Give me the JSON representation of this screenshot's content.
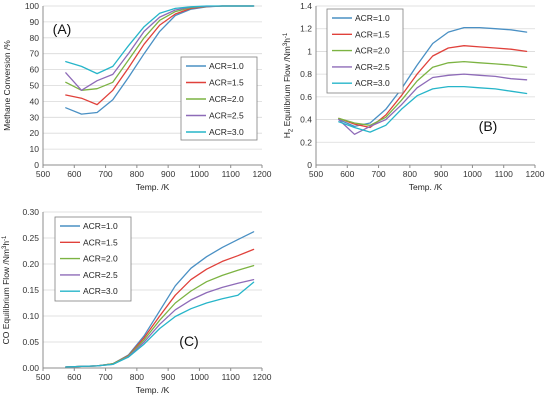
{
  "chart_data": [
    {
      "type": "line",
      "panel_label": "(A)",
      "xlabel": "Temp. /K",
      "ylabel": "Methane Conversion  /%",
      "xlim": [
        500,
        1200
      ],
      "ylim": [
        0,
        100
      ],
      "xticks": [
        500,
        600,
        700,
        800,
        900,
        1000,
        1100,
        1200
      ],
      "yticks": [
        0,
        10,
        20,
        30,
        40,
        50,
        60,
        70,
        80,
        90,
        100
      ],
      "xtick_labels": [
        "500",
        "600",
        "700",
        "800",
        "900",
        "1000",
        "1100",
        "1200"
      ],
      "ytick_labels": [
        "0",
        "10",
        "20",
        "30",
        "40",
        "50",
        "60",
        "70",
        "80",
        "90",
        "100"
      ],
      "legend_position": "right-middle",
      "x": [
        573,
        623,
        673,
        723,
        773,
        823,
        873,
        923,
        973,
        1023,
        1073,
        1123,
        1173
      ],
      "series": [
        {
          "name": "ACR=1.0",
          "color": "#4a90c4",
          "values": [
            36,
            32,
            33,
            41,
            55,
            70,
            84,
            94,
            98,
            99.5,
            100,
            100,
            100
          ]
        },
        {
          "name": "ACR=1.5",
          "color": "#e0413b",
          "values": [
            44,
            42,
            38,
            47,
            61,
            76,
            88,
            95,
            98.5,
            99.6,
            100,
            100,
            100
          ]
        },
        {
          "name": "ACR=2.0",
          "color": "#7cb342",
          "values": [
            52,
            47,
            48,
            52,
            66,
            80,
            91,
            96.5,
            99,
            99.7,
            100,
            100,
            100
          ]
        },
        {
          "name": "ACR=2.5",
          "color": "#8e6bb8",
          "values": [
            58,
            47,
            53,
            57,
            70,
            84,
            93,
            97.5,
            99.3,
            99.8,
            100,
            100,
            100
          ]
        },
        {
          "name": "ACR=3.0",
          "color": "#26b5c9",
          "values": [
            65,
            62,
            57.5,
            62,
            75,
            87,
            95.5,
            98.5,
            99.5,
            100,
            100,
            100,
            100
          ]
        }
      ]
    },
    {
      "type": "line",
      "panel_label": "(B)",
      "xlabel": "Temp. /K",
      "ylabel_main": "H",
      "ylabel_sub": "2",
      "ylabel_rest": " Equilibrium Flow /Nm",
      "ylabel_sup1": "3",
      "ylabel_mid": "h",
      "ylabel_sup2": "-1",
      "xlim": [
        500,
        1200
      ],
      "ylim": [
        0,
        1.4
      ],
      "xticks": [
        500,
        600,
        700,
        800,
        900,
        1000,
        1100,
        1200
      ],
      "yticks": [
        0,
        0.2,
        0.4,
        0.6,
        0.8,
        1.0,
        1.2,
        1.4
      ],
      "xtick_labels": [
        "500",
        "600",
        "700",
        "800",
        "900",
        "1000",
        "1100",
        "1200"
      ],
      "ytick_labels": [
        "0",
        "0.2",
        "0.4",
        "0.6",
        "0.8",
        "1",
        "1.2",
        "1.4"
      ],
      "legend_position": "top-left",
      "x": [
        573,
        623,
        673,
        723,
        773,
        823,
        873,
        923,
        973,
        1023,
        1073,
        1123,
        1173
      ],
      "series": [
        {
          "name": "ACR=1.0",
          "color": "#4a90c4",
          "values": [
            0.4,
            0.34,
            0.37,
            0.49,
            0.67,
            0.88,
            1.07,
            1.17,
            1.21,
            1.21,
            1.2,
            1.19,
            1.17
          ]
        },
        {
          "name": "ACR=1.5",
          "color": "#e0413b",
          "values": [
            0.41,
            0.36,
            0.33,
            0.44,
            0.61,
            0.8,
            0.96,
            1.03,
            1.05,
            1.04,
            1.03,
            1.02,
            1.0
          ]
        },
        {
          "name": "ACR=2.0",
          "color": "#7cb342",
          "values": [
            0.41,
            0.37,
            0.35,
            0.42,
            0.57,
            0.74,
            0.86,
            0.9,
            0.91,
            0.9,
            0.89,
            0.88,
            0.86
          ]
        },
        {
          "name": "ACR=2.5",
          "color": "#8e6bb8",
          "values": [
            0.4,
            0.27,
            0.34,
            0.4,
            0.53,
            0.68,
            0.77,
            0.79,
            0.8,
            0.79,
            0.78,
            0.76,
            0.75
          ]
        },
        {
          "name": "ACR=3.0",
          "color": "#26b5c9",
          "values": [
            0.38,
            0.33,
            0.29,
            0.35,
            0.49,
            0.61,
            0.67,
            0.69,
            0.69,
            0.68,
            0.67,
            0.65,
            0.63
          ]
        }
      ]
    },
    {
      "type": "line",
      "panel_label": "(C)",
      "xlabel": "Temp. /K",
      "ylabel_main": "CO Equilibrium Flow /Nm",
      "ylabel_sup1": "3",
      "ylabel_mid": "h",
      "ylabel_sup2": "-1",
      "xlim": [
        500,
        1200
      ],
      "ylim": [
        0,
        0.3
      ],
      "xticks": [
        500,
        600,
        700,
        800,
        900,
        1000,
        1100,
        1200
      ],
      "yticks": [
        0,
        0.05,
        0.1,
        0.15,
        0.2,
        0.25,
        0.3
      ],
      "xtick_labels": [
        "500",
        "600",
        "700",
        "800",
        "900",
        "1000",
        "1100",
        "1200"
      ],
      "ytick_labels": [
        "0.00",
        "0.05",
        "0.10",
        "0.15",
        "0.20",
        "0.25",
        "0.30"
      ],
      "legend_position": "top-left",
      "x": [
        573,
        623,
        673,
        723,
        773,
        823,
        873,
        923,
        973,
        1023,
        1073,
        1123,
        1173
      ],
      "series": [
        {
          "name": "ACR=1.0",
          "color": "#4a90c4",
          "values": [
            0.002,
            0.003,
            0.004,
            0.008,
            0.025,
            0.062,
            0.11,
            0.158,
            0.192,
            0.214,
            0.232,
            0.247,
            0.262
          ]
        },
        {
          "name": "ACR=1.5",
          "color": "#e0413b",
          "values": [
            0.002,
            0.003,
            0.004,
            0.008,
            0.024,
            0.058,
            0.1,
            0.14,
            0.17,
            0.19,
            0.205,
            0.216,
            0.228
          ]
        },
        {
          "name": "ACR=2.0",
          "color": "#7cb342",
          "values": [
            0.002,
            0.003,
            0.004,
            0.008,
            0.023,
            0.054,
            0.092,
            0.125,
            0.148,
            0.166,
            0.178,
            0.188,
            0.197
          ]
        },
        {
          "name": "ACR=2.5",
          "color": "#8e6bb8",
          "values": [
            0.002,
            0.003,
            0.004,
            0.007,
            0.022,
            0.05,
            0.084,
            0.112,
            0.131,
            0.145,
            0.155,
            0.163,
            0.17
          ]
        },
        {
          "name": "ACR=3.0",
          "color": "#26b5c9",
          "values": [
            0.002,
            0.003,
            0.004,
            0.007,
            0.021,
            0.046,
            0.076,
            0.099,
            0.114,
            0.125,
            0.133,
            0.14,
            0.165
          ]
        }
      ]
    }
  ]
}
